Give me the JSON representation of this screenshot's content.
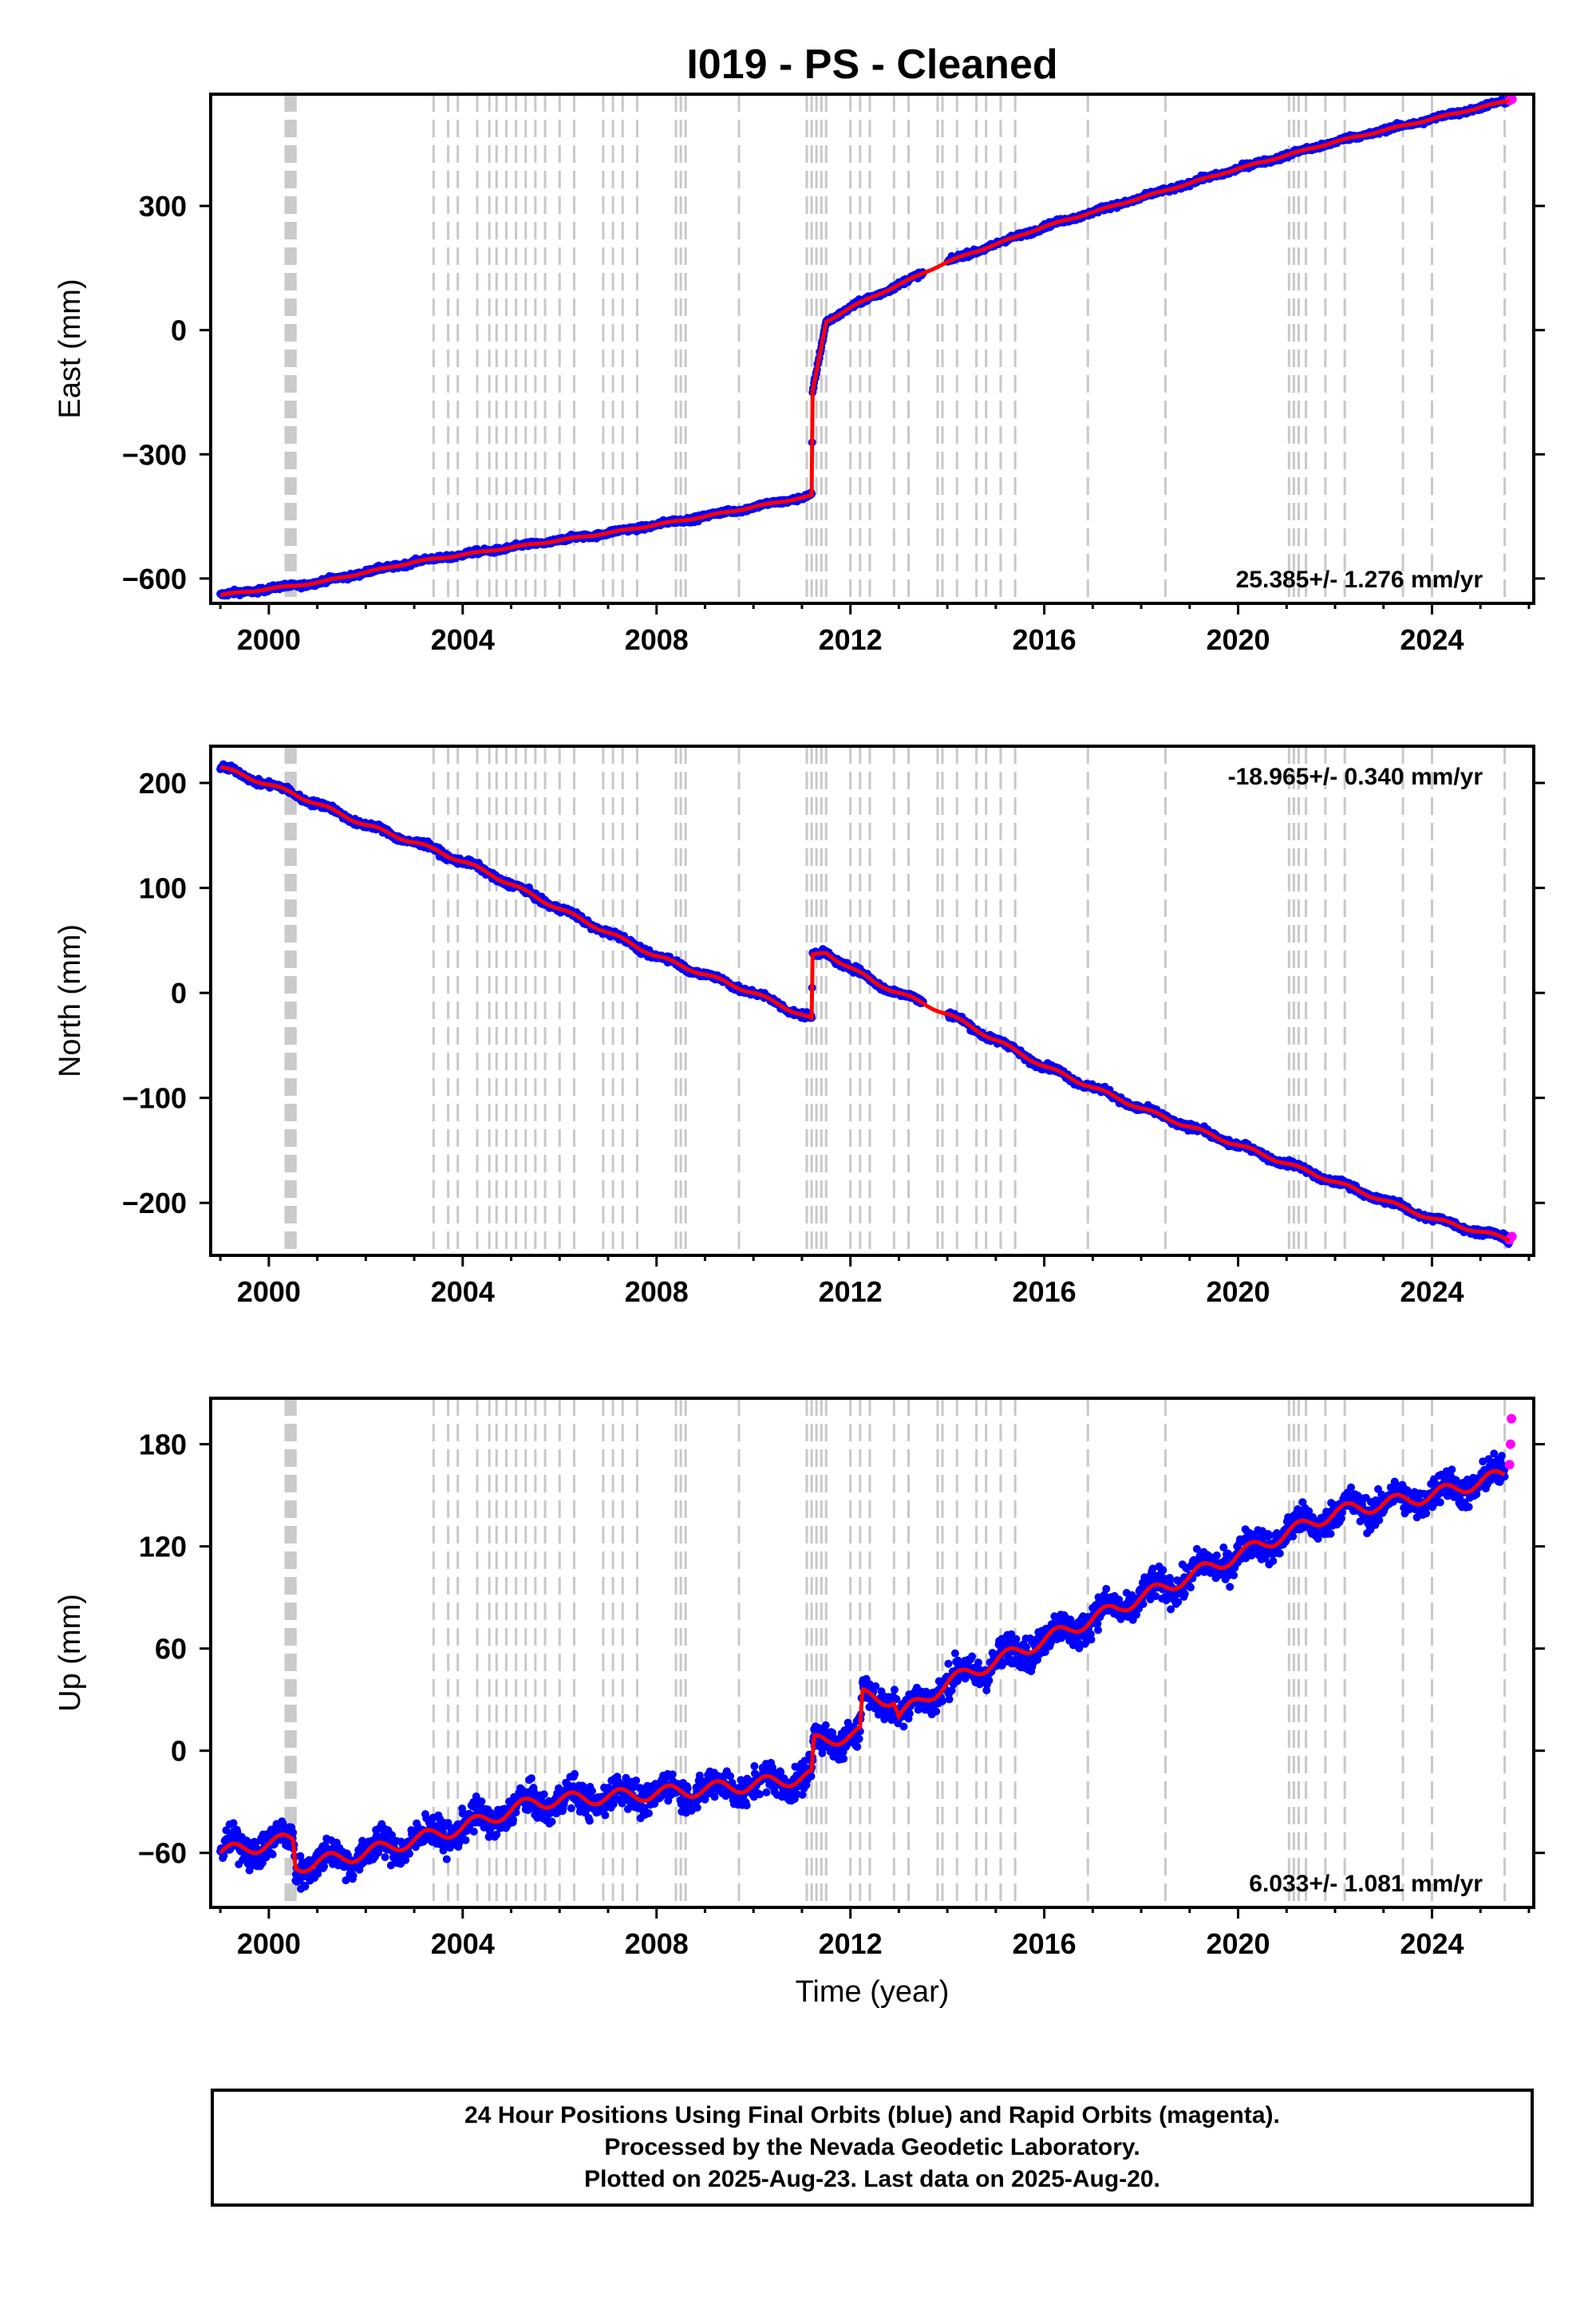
{
  "chart_data": [
    {
      "type": "scatter",
      "title": "I019  - PS - Cleaned",
      "xlabel": "",
      "ylabel": "East (mm)",
      "xlim": [
        1998.8,
        2026.1
      ],
      "ylim": [
        -660,
        570
      ],
      "xticks": [
        2000,
        2004,
        2008,
        2012,
        2016,
        2020,
        2024
      ],
      "yticks": [
        -600,
        -300,
        0,
        300
      ],
      "ytick_labels": [
        "−600",
        "−300",
        "0",
        "300"
      ],
      "grid": false,
      "rate_label": "25.385+/- 1.276 mm/yr",
      "series": [
        {
          "type": "scatter",
          "color": "#0000ff",
          "x": [
            1999.0,
            2001.0,
            2003.0,
            2005.0,
            2007.0,
            2009.0,
            2011.2,
            2011.22,
            2011.5,
            2012.0,
            2013.0,
            2014.0,
            2016.0,
            2018.0,
            2020.0,
            2022.0,
            2024.0,
            2025.6
          ],
          "y": [
            -640,
            -610,
            -560,
            -525,
            -490,
            -450,
            -400,
            -150,
            20,
            55,
            110,
            165,
            250,
            320,
            390,
            455,
            510,
            555
          ]
        },
        {
          "type": "scatter",
          "color": "#ff00ff",
          "x": [
            2025.6,
            2025.65
          ],
          "y": [
            555,
            558
          ]
        },
        {
          "type": "line",
          "color": "#ff0000",
          "x": [
            1999.0,
            2001.0,
            2003.0,
            2005.0,
            2007.0,
            2009.0,
            2011.2,
            2011.22,
            2011.5,
            2012.0,
            2013.0,
            2014.0,
            2016.0,
            2018.0,
            2020.0,
            2022.0,
            2024.0,
            2025.6
          ],
          "y": [
            -640,
            -610,
            -560,
            -525,
            -490,
            -450,
            -400,
            -150,
            20,
            55,
            110,
            165,
            250,
            320,
            390,
            455,
            510,
            555
          ]
        }
      ]
    },
    {
      "type": "scatter",
      "title": "",
      "xlabel": "",
      "ylabel": "North (mm)",
      "xlim": [
        1998.8,
        2026.1
      ],
      "ylim": [
        -250,
        235
      ],
      "xticks": [
        2000,
        2004,
        2008,
        2012,
        2016,
        2020,
        2024
      ],
      "yticks": [
        -200,
        -100,
        0,
        100,
        200
      ],
      "ytick_labels": [
        "−200",
        "−100",
        "0",
        "100",
        "200"
      ],
      "grid": false,
      "rate_label": "-18.965+/- 0.340 mm/yr",
      "series": [
        {
          "type": "scatter",
          "color": "#0000ff",
          "x": [
            1999.0,
            2000.5,
            2002.0,
            2003.5,
            2004.5,
            2006.0,
            2008.0,
            2010.0,
            2011.2,
            2011.22,
            2011.5,
            2012.5,
            2013.5,
            2014.0,
            2016.0,
            2018.0,
            2020.0,
            2022.0,
            2024.0,
            2025.6
          ],
          "y": [
            215,
            190,
            160,
            135,
            115,
            80,
            35,
            0,
            -25,
            35,
            38,
            10,
            -10,
            -20,
            -70,
            -110,
            -145,
            -180,
            -215,
            -235
          ]
        },
        {
          "type": "scatter",
          "color": "#ff00ff",
          "x": [
            2025.6,
            2025.65
          ],
          "y": [
            -235,
            -232
          ]
        },
        {
          "type": "line",
          "color": "#ff0000",
          "x": [
            1999.0,
            2000.5,
            2002.0,
            2003.5,
            2004.5,
            2006.0,
            2008.0,
            2010.0,
            2011.2,
            2011.22,
            2011.5,
            2012.5,
            2013.5,
            2014.0,
            2016.0,
            2018.0,
            2020.0,
            2022.0,
            2024.0,
            2025.6
          ],
          "y": [
            215,
            190,
            160,
            135,
            115,
            80,
            35,
            0,
            -25,
            35,
            38,
            10,
            -10,
            -20,
            -70,
            -110,
            -145,
            -180,
            -215,
            -235
          ]
        }
      ]
    },
    {
      "type": "scatter",
      "title": "",
      "xlabel": "Time (year)",
      "ylabel": "Up (mm)",
      "xlim": [
        1998.8,
        2026.1
      ],
      "ylim": [
        -92,
        207
      ],
      "xticks": [
        2000,
        2004,
        2008,
        2012,
        2016,
        2020,
        2024
      ],
      "yticks": [
        -60,
        0,
        60,
        120,
        180
      ],
      "ytick_labels": [
        "−60",
        "0",
        "60",
        "120",
        "180"
      ],
      "grid": false,
      "rate_label": "6.033+/- 1.081 mm/yr",
      "series": [
        {
          "type": "scatter",
          "color": "#0000ff",
          "x": [
            1999.0,
            2000.5,
            2000.55,
            2002.0,
            2004.0,
            2005.5,
            2008.0,
            2010.0,
            2011.2,
            2011.25,
            2012.2,
            2012.25,
            2012.9,
            2013.0,
            2014.0,
            2016.0,
            2018.0,
            2020.0,
            2022.0,
            2024.0,
            2025.5
          ],
          "y": [
            -60,
            -52,
            -68,
            -60,
            -45,
            -30,
            -25,
            -20,
            -15,
            5,
            10,
            32,
            30,
            20,
            40,
            65,
            90,
            115,
            140,
            150,
            162
          ]
        },
        {
          "type": "scatter",
          "color": "#ff00ff",
          "x": [
            2025.6,
            2025.62,
            2025.64
          ],
          "y": [
            168,
            180,
            195
          ]
        },
        {
          "type": "line",
          "color": "#ff0000",
          "x": [
            1999.0,
            2000.5,
            2000.55,
            2002.0,
            2004.0,
            2005.5,
            2008.0,
            2010.0,
            2011.2,
            2011.25,
            2012.2,
            2012.25,
            2012.9,
            2013.0,
            2014.0,
            2016.0,
            2018.0,
            2020.0,
            2022.0,
            2024.0,
            2025.5
          ],
          "y": [
            -60,
            -52,
            -68,
            -60,
            -45,
            -30,
            -25,
            -20,
            -15,
            5,
            10,
            32,
            30,
            20,
            40,
            65,
            90,
            115,
            140,
            150,
            162
          ]
        }
      ]
    }
  ],
  "offset_lines": [
    2000.35,
    2000.4,
    2000.45,
    2000.5,
    2000.55,
    2003.4,
    2003.7,
    2003.9,
    2004.3,
    2004.55,
    2004.7,
    2004.9,
    2005.1,
    2005.3,
    2005.5,
    2005.7,
    2006.0,
    2006.3,
    2006.9,
    2007.1,
    2007.3,
    2007.6,
    2008.4,
    2008.5,
    2008.6,
    2009.7,
    2011.1,
    2011.2,
    2011.3,
    2011.4,
    2011.5,
    2012.0,
    2012.2,
    2012.4,
    2012.9,
    2013.2,
    2013.8,
    2013.9,
    2014.2,
    2014.6,
    2014.8,
    2015.1,
    2015.4,
    2016.9,
    2018.5,
    2021.05,
    2021.15,
    2021.25,
    2021.4,
    2021.8,
    2022.2,
    2023.4,
    2024.0,
    2025.5
  ],
  "footer": {
    "line1": "24 Hour Positions Using Final Orbits (blue) and Rapid Orbits (magenta).",
    "line2": "Processed by the Nevada Geodetic Laboratory.",
    "line3": "Plotted on 2025-Aug-23. Last data on 2025-Aug-20."
  }
}
